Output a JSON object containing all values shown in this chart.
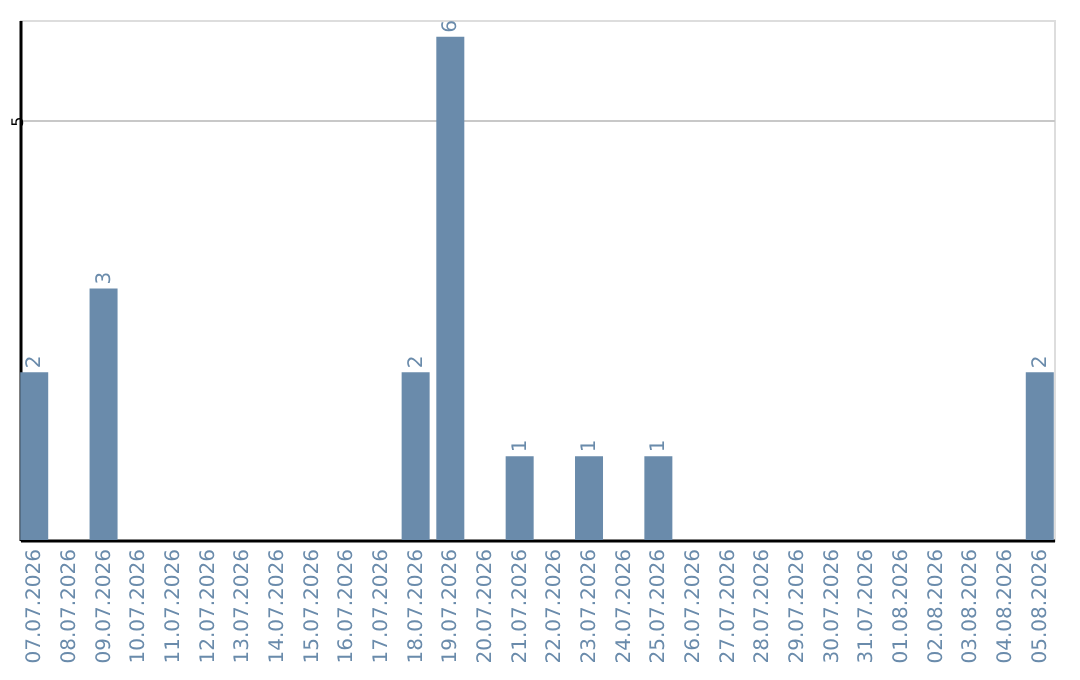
{
  "chart_data": {
    "type": "bar",
    "categories": [
      "07.07.2026",
      "08.07.2026",
      "09.07.2026",
      "10.07.2026",
      "11.07.2026",
      "12.07.2026",
      "13.07.2026",
      "14.07.2026",
      "15.07.2026",
      "16.07.2026",
      "17.07.2026",
      "18.07.2026",
      "19.07.2026",
      "20.07.2026",
      "21.07.2026",
      "22.07.2026",
      "23.07.2026",
      "24.07.2026",
      "25.07.2026",
      "26.07.2026",
      "27.07.2026",
      "28.07.2026",
      "29.07.2026",
      "30.07.2026",
      "31.07.2026",
      "01.08.2026",
      "02.08.2026",
      "03.08.2026",
      "04.08.2026",
      "05.08.2026"
    ],
    "values": [
      2,
      0,
      3,
      0,
      0,
      0,
      0,
      0,
      0,
      0,
      0,
      2,
      6,
      0,
      1,
      0,
      1,
      0,
      1,
      0,
      0,
      0,
      0,
      0,
      0,
      0,
      0,
      0,
      0,
      2
    ],
    "value_labels": [
      "2",
      null,
      "3",
      null,
      null,
      null,
      null,
      null,
      null,
      null,
      null,
      "2",
      "6",
      null,
      "1",
      null,
      "1",
      null,
      "1",
      null,
      null,
      null,
      null,
      null,
      null,
      null,
      null,
      null,
      null,
      "2"
    ],
    "color": "#6a8bab",
    "ylim": [
      0,
      6.2
    ],
    "yticks": [
      5
    ],
    "grid": "y"
  }
}
